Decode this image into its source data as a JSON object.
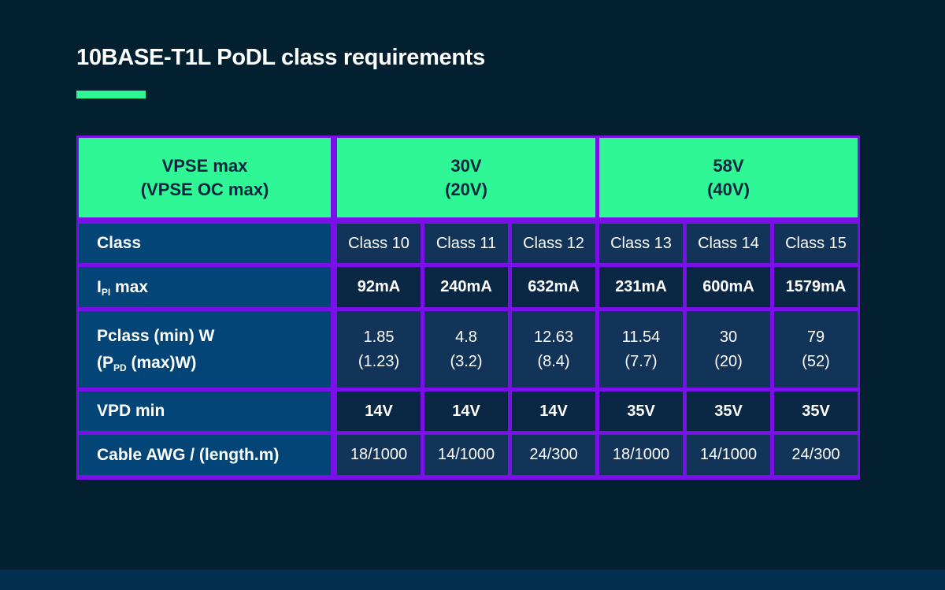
{
  "page": {
    "title": "10BASE-T1L PoDL class requirements"
  },
  "colors": {
    "background": "#02202F",
    "footer_strip": "#03304F",
    "accent_green": "#2FF795",
    "border_purple": "#7A10E8",
    "label_cell_blue": "#034577",
    "row_medium": "#123458",
    "row_dark": "#0A2843",
    "header_text_navy": "#0A2540",
    "text_white": "#FFFFFF"
  },
  "table": {
    "header": {
      "label": {
        "line1": "VPSE max",
        "line2": "(VPSE OC max)"
      },
      "group1": {
        "line1": "30V",
        "line2": "(20V)"
      },
      "group2": {
        "line1": "58V",
        "line2": "(40V)"
      }
    },
    "rows": {
      "class": {
        "label": "Class",
        "values": [
          "Class 10",
          "Class 11",
          "Class 12",
          "Class 13",
          "Class 14",
          "Class 15"
        ]
      },
      "ipi": {
        "label_pre": "I",
        "label_sub": "PI",
        "label_post": " max",
        "values": [
          "92mA",
          "240mA",
          "632mA",
          "231mA",
          "600mA",
          "1579mA"
        ]
      },
      "pclass": {
        "label_line1": "Pclass (min) W",
        "label_line2_pre": "(P",
        "label_line2_sub": "PD",
        "label_line2_post": " (max)W)",
        "values": [
          "1.85\n(1.23)",
          "4.8\n(3.2)",
          "12.63\n(8.4)",
          "11.54\n(7.7)",
          "30\n(20)",
          "79\n(52)"
        ]
      },
      "vpd": {
        "label": "VPD min",
        "values": [
          "14V",
          "14V",
          "14V",
          "35V",
          "35V",
          "35V"
        ]
      },
      "cable": {
        "label": "Cable AWG / (length.m)",
        "values": [
          "18/1000",
          "14/1000",
          "24/300",
          "18/1000",
          "14/1000",
          "24/300"
        ]
      }
    }
  },
  "chart_data": {
    "type": "table",
    "title": "10BASE-T1L PoDL class requirements",
    "column_groups": [
      {
        "label": "VPSE max (VPSE OC max)",
        "span": 1
      },
      {
        "label": "30V (20V)",
        "span": 3
      },
      {
        "label": "58V (40V)",
        "span": 3
      }
    ],
    "columns": [
      "Class 10",
      "Class 11",
      "Class 12",
      "Class 13",
      "Class 14",
      "Class 15"
    ],
    "rows": [
      {
        "label": "IPI max",
        "values": [
          "92mA",
          "240mA",
          "632mA",
          "231mA",
          "600mA",
          "1579mA"
        ]
      },
      {
        "label": "Pclass (min) W (PPD (max)W)",
        "values": [
          "1.85 (1.23)",
          "4.8 (3.2)",
          "12.63 (8.4)",
          "11.54 (7.7)",
          "30 (20)",
          "79 (52)"
        ]
      },
      {
        "label": "VPD min",
        "values": [
          "14V",
          "14V",
          "14V",
          "35V",
          "35V",
          "35V"
        ]
      },
      {
        "label": "Cable AWG / (length.m)",
        "values": [
          "18/1000",
          "14/1000",
          "24/300",
          "18/1000",
          "14/1000",
          "24/300"
        ]
      }
    ]
  }
}
